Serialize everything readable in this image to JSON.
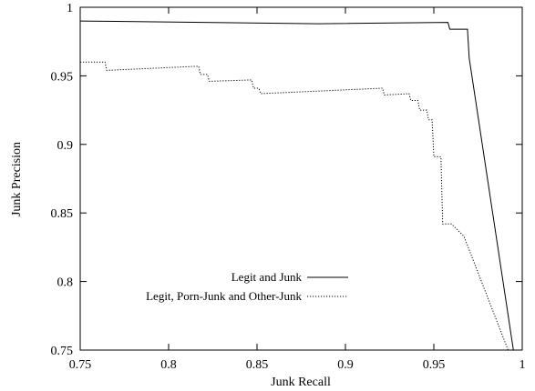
{
  "chart_data": {
    "type": "line",
    "title": "",
    "xlabel": "Junk Recall",
    "ylabel": "Junk Precision",
    "xlim": [
      0.75,
      1.0
    ],
    "ylim": [
      0.75,
      1.0
    ],
    "xticks": [
      0.75,
      0.8,
      0.85,
      0.9,
      0.95,
      1
    ],
    "xtick_labels": [
      "0.75",
      "0.8",
      "0.85",
      "0.9",
      "0.95",
      "1"
    ],
    "yticks": [
      0.75,
      0.8,
      0.85,
      0.9,
      0.95,
      1
    ],
    "ytick_labels": [
      "0.75",
      "0.8",
      "0.85",
      "0.9",
      "0.95",
      "1"
    ],
    "grid": false,
    "legend_position": "bottom-left",
    "series": [
      {
        "name": "Legit and Junk",
        "style": "solid",
        "color": "#000000",
        "x": [
          0.75,
          0.885,
          0.958,
          0.959,
          0.969,
          0.97,
          0.995
        ],
        "y": [
          0.99,
          0.988,
          0.989,
          0.984,
          0.984,
          0.963,
          0.75
        ]
      },
      {
        "name": "Legit, Porn-Junk and Other-Junk",
        "style": "dotted",
        "color": "#000000",
        "x": [
          0.75,
          0.764,
          0.765,
          0.817,
          0.818,
          0.822,
          0.823,
          0.847,
          0.848,
          0.851,
          0.852,
          0.921,
          0.922,
          0.936,
          0.937,
          0.941,
          0.942,
          0.946,
          0.947,
          0.949,
          0.95,
          0.954,
          0.955,
          0.96,
          0.967,
          0.992
        ],
        "y": [
          0.96,
          0.96,
          0.954,
          0.957,
          0.951,
          0.951,
          0.946,
          0.947,
          0.941,
          0.941,
          0.937,
          0.941,
          0.936,
          0.937,
          0.932,
          0.932,
          0.925,
          0.925,
          0.918,
          0.918,
          0.891,
          0.891,
          0.842,
          0.842,
          0.833,
          0.75
        ]
      }
    ]
  }
}
